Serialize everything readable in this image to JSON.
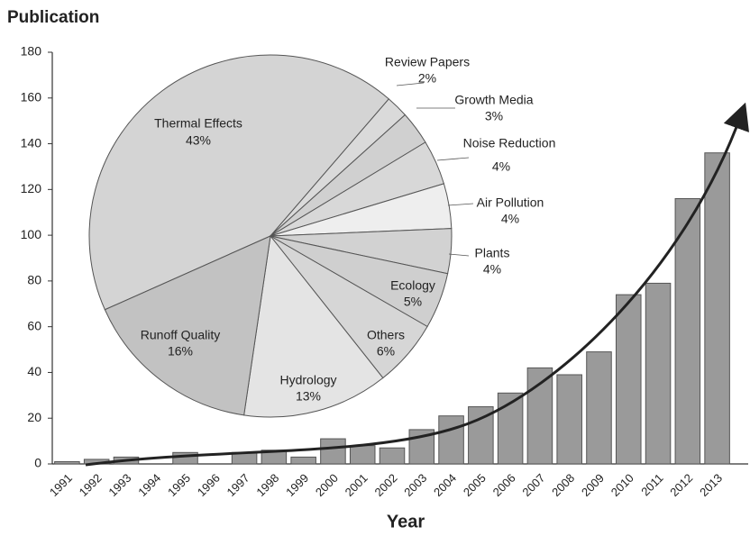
{
  "chart_data": [
    {
      "type": "bar",
      "y_label": "Publication",
      "x_label": "Year",
      "categories": [
        "1991",
        "1992",
        "1993",
        "1994",
        "1995",
        "1996",
        "1997",
        "1998",
        "1999",
        "2000",
        "2001",
        "2002",
        "2003",
        "2004",
        "2005",
        "2006",
        "2007",
        "2008",
        "2009",
        "2010",
        "2011",
        "2012",
        "2013"
      ],
      "values": [
        1,
        2,
        3,
        0,
        5,
        0,
        5,
        6,
        3,
        11,
        8,
        7,
        15,
        21,
        25,
        31,
        42,
        39,
        49,
        74,
        79,
        116,
        136
      ],
      "color": "#9a9a9a",
      "ylim": [
        0,
        180
      ],
      "yticks": [
        0,
        20,
        40,
        60,
        80,
        100,
        120,
        140,
        160,
        180
      ]
    },
    {
      "type": "pie",
      "categories": [
        "Thermal Effects",
        "Review Papers",
        "Growth Media",
        "Noise Reduction",
        "Air Pollution",
        "Plants",
        "Ecology",
        "Others",
        "Hydrology",
        "Runoff Quality"
      ],
      "values": [
        43,
        2,
        3,
        4,
        4,
        4,
        5,
        6,
        13,
        16
      ],
      "value_labels": [
        "43%",
        "2%",
        "3%",
        "4%",
        "4%",
        "4%",
        "5%",
        "6%",
        "13%",
        "16%"
      ],
      "colors": [
        "#d4d4d4",
        "#dadada",
        "#d0d0d0",
        "#d8d8d8",
        "#eeeeee",
        "#d2d2d2",
        "#cfcfcf",
        "#d6d6d6",
        "#e4e4e4",
        "#c2c2c2"
      ]
    }
  ]
}
